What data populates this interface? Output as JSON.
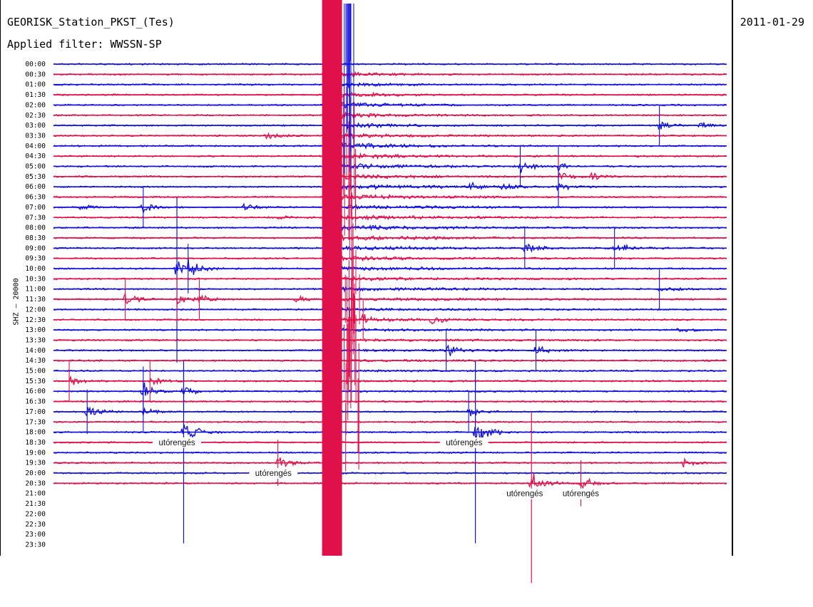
{
  "header": {
    "station": "GEORISK_Station_PKST_(Tes)",
    "filter": "Applied filter: WWSSN-SP",
    "date": "2011-01-29",
    "channel_label": "SHZ — 20000"
  },
  "colors": {
    "trace_a": "#1010e0",
    "trace_b": "#e0104a"
  },
  "chart_data": {
    "type": "line",
    "title": "GEORISK_Station_PKST_(Tes)",
    "subtitle": "Applied filter: WWSSN-SP",
    "ylabel": "SHZ — 20000",
    "xlabel": "",
    "y_ticks": [
      "00:00",
      "00:30",
      "01:00",
      "01:30",
      "02:00",
      "02:30",
      "03:00",
      "03:30",
      "04:00",
      "04:30",
      "05:00",
      "05:30",
      "06:00",
      "06:30",
      "07:00",
      "07:30",
      "08:00",
      "08:30",
      "09:00",
      "09:30",
      "10:00",
      "10:30",
      "11:00",
      "11:30",
      "12:00",
      "12:30",
      "13:00",
      "13:30",
      "14:00",
      "14:30",
      "15:00",
      "15:30",
      "16:00",
      "16:30",
      "17:00",
      "17:30",
      "18:00",
      "18:30",
      "19:00",
      "19:30",
      "20:00",
      "20:30",
      "21:00",
      "21:30",
      "22:00",
      "22:30",
      "23:00",
      "23:30"
    ],
    "recorded_rows": 42,
    "x_range_minutes": [
      0,
      30
    ],
    "mainshock": {
      "row": "00:00",
      "minute": 12.0
    },
    "events": [
      {
        "row": "03:30",
        "minute": 9.5,
        "amp": 0.6
      },
      {
        "row": "03:00",
        "minute": 27.0,
        "amp": 0.8
      },
      {
        "row": "03:00",
        "minute": 28.8,
        "amp": 0.6
      },
      {
        "row": "05:00",
        "minute": 20.8,
        "amp": 0.9
      },
      {
        "row": "05:00",
        "minute": 22.5,
        "amp": 0.8
      },
      {
        "row": "05:30",
        "minute": 22.5,
        "amp": 0.9
      },
      {
        "row": "05:30",
        "minute": 24.0,
        "amp": 0.6
      },
      {
        "row": "06:00",
        "minute": 18.5,
        "amp": 0.6
      },
      {
        "row": "06:00",
        "minute": 20.0,
        "amp": 0.7
      },
      {
        "row": "06:00",
        "minute": 22.5,
        "amp": 0.9
      },
      {
        "row": "07:00",
        "minute": 1.2,
        "amp": 0.7
      },
      {
        "row": "07:00",
        "minute": 4.0,
        "amp": 0.9
      },
      {
        "row": "07:00",
        "minute": 8.5,
        "amp": 0.6
      },
      {
        "row": "07:30",
        "minute": 10.0,
        "amp": 0.5
      },
      {
        "row": "09:00",
        "minute": 21.0,
        "amp": 0.9
      },
      {
        "row": "09:00",
        "minute": 25.0,
        "amp": 0.9
      },
      {
        "row": "10:00",
        "minute": 5.5,
        "amp": 1.8
      },
      {
        "row": "10:00",
        "minute": 6.0,
        "amp": 1.4
      },
      {
        "row": "11:00",
        "minute": 27.0,
        "amp": 0.8
      },
      {
        "row": "11:30",
        "minute": 3.2,
        "amp": 1.0
      },
      {
        "row": "11:30",
        "minute": 5.5,
        "amp": 1.0
      },
      {
        "row": "11:30",
        "minute": 6.5,
        "amp": 0.8
      },
      {
        "row": "11:30",
        "minute": 10.8,
        "amp": 0.6
      },
      {
        "row": "12:30",
        "minute": 13.8,
        "amp": 0.8
      },
      {
        "row": "12:30",
        "minute": 16.8,
        "amp": 0.7
      },
      {
        "row": "13:00",
        "minute": 27.8,
        "amp": 0.5
      },
      {
        "row": "14:00",
        "minute": 17.5,
        "amp": 1.0
      },
      {
        "row": "14:00",
        "minute": 21.5,
        "amp": 0.9
      },
      {
        "row": "15:30",
        "minute": 0.7,
        "amp": 0.8
      },
      {
        "row": "15:30",
        "minute": 4.3,
        "amp": 0.8
      },
      {
        "row": "16:00",
        "minute": 4.0,
        "amp": 1.4
      },
      {
        "row": "16:00",
        "minute": 5.8,
        "amp": 1.1
      },
      {
        "row": "17:00",
        "minute": 1.5,
        "amp": 1.1
      },
      {
        "row": "17:00",
        "minute": 4.0,
        "amp": 0.8
      },
      {
        "row": "17:00",
        "minute": 18.5,
        "amp": 0.8
      },
      {
        "row": "18:00",
        "minute": 5.8,
        "amp": 2.4
      },
      {
        "row": "18:00",
        "minute": 18.8,
        "amp": 2.4
      },
      {
        "row": "19:30",
        "minute": 10.0,
        "amp": 1.2
      },
      {
        "row": "19:30",
        "minute": 28.0,
        "amp": 0.6
      },
      {
        "row": "20:30",
        "minute": 21.3,
        "amp": 2.0
      },
      {
        "row": "20:30",
        "minute": 23.5,
        "amp": 1.2
      }
    ],
    "annotations": [
      {
        "text": "utórengés",
        "row": "18:30",
        "minute": 5.5
      },
      {
        "text": "utórengés",
        "row": "18:30",
        "minute": 18.3
      },
      {
        "text": "utórengés",
        "row": "20:00",
        "minute": 9.8
      },
      {
        "text": "utórengés",
        "row": "21:00",
        "minute": 21.0
      },
      {
        "text": "utórengés",
        "row": "21:00",
        "minute": 23.5
      }
    ]
  }
}
